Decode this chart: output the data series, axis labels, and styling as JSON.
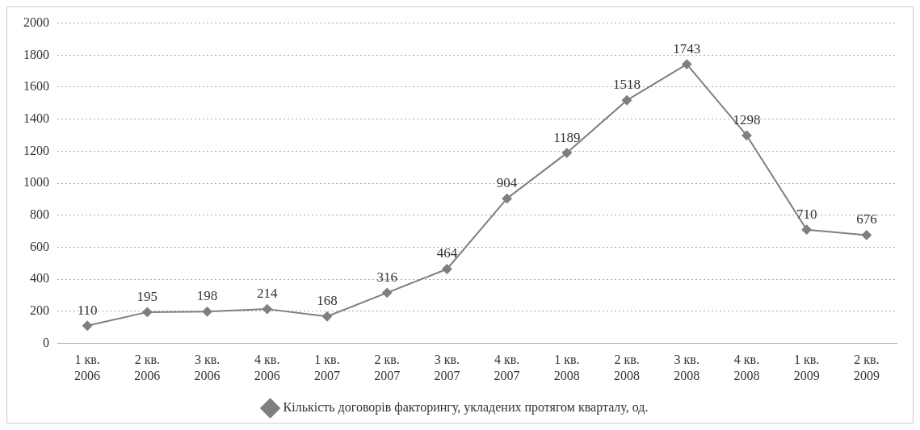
{
  "chart_data": {
    "type": "line",
    "categories": [
      "1 кв. 2006",
      "2 кв. 2006",
      "3 кв. 2006",
      "4 кв. 2006",
      "1 кв. 2007",
      "2 кв. 2007",
      "3 кв. 2007",
      "4 кв. 2007",
      "1 кв. 2008",
      "2 кв. 2008",
      "3 кв. 2008",
      "4 кв. 2008",
      "1 кв. 2009",
      "2 кв. 2009"
    ],
    "series": [
      {
        "name": "Кількість договорів факторингу, укладених протягом кварталу, од.",
        "color": "#7f7f7f",
        "values": [
          110,
          195,
          198,
          214,
          168,
          316,
          464,
          904,
          1189,
          1518,
          1743,
          1298,
          710,
          676
        ]
      }
    ],
    "ylim": [
      0,
      2000
    ],
    "yticks": [
      0,
      200,
      400,
      600,
      800,
      1000,
      1200,
      1400,
      1600,
      1800,
      2000
    ],
    "grid": "y",
    "legend": "bottom",
    "marker": "diamond",
    "line_style": "solid",
    "data_labels": true
  }
}
